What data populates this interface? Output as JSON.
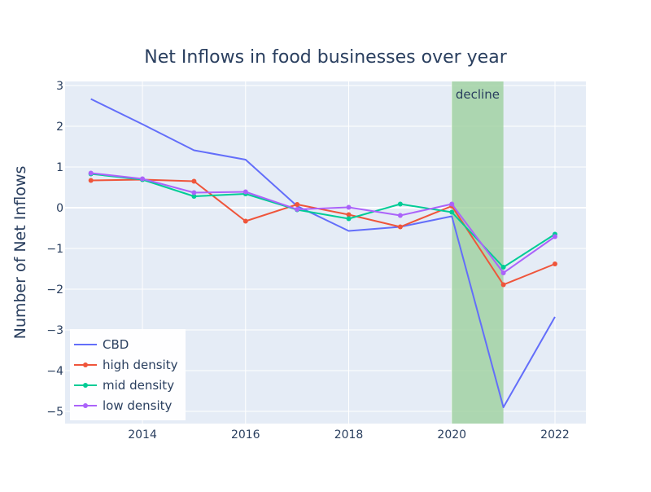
{
  "chart_data": {
    "type": "line",
    "title": "Net Inflows in food businesses over year",
    "xlabel": "",
    "ylabel": "Number of Net Inflows",
    "xlim": [
      2012.5,
      2022.6
    ],
    "ylim": [
      -5.3,
      3.1
    ],
    "x_ticks": [
      2014,
      2016,
      2018,
      2020,
      2022
    ],
    "y_ticks": [
      -5,
      -4,
      -3,
      -2,
      -1,
      0,
      1,
      2,
      3
    ],
    "y_tick_labels": [
      "−5",
      "−4",
      "−3",
      "−2",
      "−1",
      "0",
      "1",
      "2",
      "3"
    ],
    "grid": true,
    "legend_position": "bottom-left",
    "shaded_region": {
      "x0": 2020,
      "x1": 2021,
      "label": "decline",
      "color": "#98cf98"
    },
    "x": [
      2013,
      2014,
      2015,
      2016,
      2017,
      2018,
      2019,
      2020,
      2021,
      2022
    ],
    "series": [
      {
        "name": "CBD",
        "color": "#636efa",
        "markers": false,
        "values": [
          2.67,
          2.05,
          1.41,
          1.18,
          0.04,
          -0.57,
          -0.47,
          -0.21,
          -4.9,
          -2.68
        ]
      },
      {
        "name": "high density",
        "color": "#ef553b",
        "markers": true,
        "values": [
          0.67,
          0.69,
          0.65,
          -0.33,
          0.08,
          -0.17,
          -0.47,
          0.04,
          -1.89,
          -1.38
        ]
      },
      {
        "name": "mid density",
        "color": "#00cc96",
        "markers": true,
        "values": [
          0.83,
          0.69,
          0.28,
          0.34,
          -0.05,
          -0.27,
          0.09,
          -0.11,
          -1.46,
          -0.65
        ]
      },
      {
        "name": "low density",
        "color": "#ab63fa",
        "markers": true,
        "values": [
          0.85,
          0.71,
          0.37,
          0.39,
          -0.04,
          0.01,
          -0.19,
          0.09,
          -1.6,
          -0.71
        ]
      }
    ]
  }
}
